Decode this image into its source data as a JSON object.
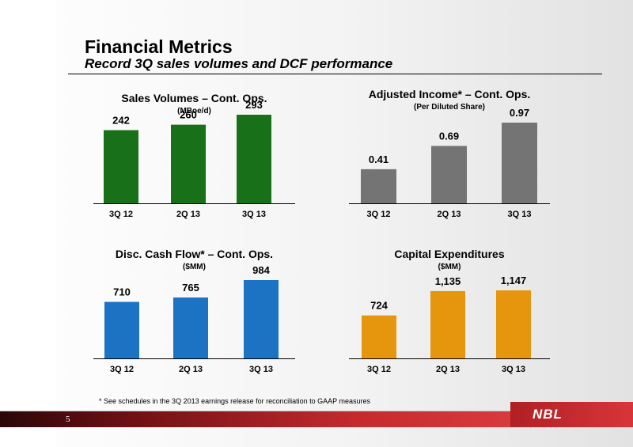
{
  "slide": {
    "title": "Financial Metrics",
    "subtitle": "Record 3Q sales volumes and DCF performance",
    "footnote": "* See schedules in the 3Q 2013 earnings release for reconciliation to GAAP measures",
    "page_number": "5",
    "logo_text": "NBL"
  },
  "chart_data": [
    {
      "type": "bar",
      "title": "Sales Volumes – Cont. Ops.",
      "subtitle": "(MBoe/d)",
      "categories": [
        "3Q 12",
        "2Q 13",
        "3Q 13"
      ],
      "values": [
        242,
        260,
        293
      ],
      "value_labels": [
        "242",
        "260",
        "293"
      ],
      "color": "#187018",
      "grid": false,
      "legend": false
    },
    {
      "type": "bar",
      "title": "Adjusted Income* – Cont. Ops.",
      "subtitle": "(Per Diluted Share)",
      "categories": [
        "3Q 12",
        "2Q 13",
        "3Q 13"
      ],
      "values": [
        0.41,
        0.69,
        0.97
      ],
      "value_labels": [
        "0.41",
        "0.69",
        "0.97"
      ],
      "color": "#747474",
      "grid": false,
      "legend": false
    },
    {
      "type": "bar",
      "title": "Disc. Cash Flow* – Cont. Ops.",
      "subtitle": "($MM)",
      "categories": [
        "3Q 12",
        "2Q 13",
        "3Q 13"
      ],
      "values": [
        710,
        765,
        984
      ],
      "value_labels": [
        "710",
        "765",
        "984"
      ],
      "color": "#1c73c4",
      "grid": false,
      "legend": false
    },
    {
      "type": "bar",
      "title": "Capital Expenditures",
      "subtitle": "($MM)",
      "categories": [
        "3Q 12",
        "2Q 13",
        "3Q 13"
      ],
      "values": [
        724,
        1135,
        1147
      ],
      "value_labels": [
        "724",
        "1,135",
        "1,147"
      ],
      "color": "#e6960c",
      "grid": false,
      "legend": false
    }
  ]
}
